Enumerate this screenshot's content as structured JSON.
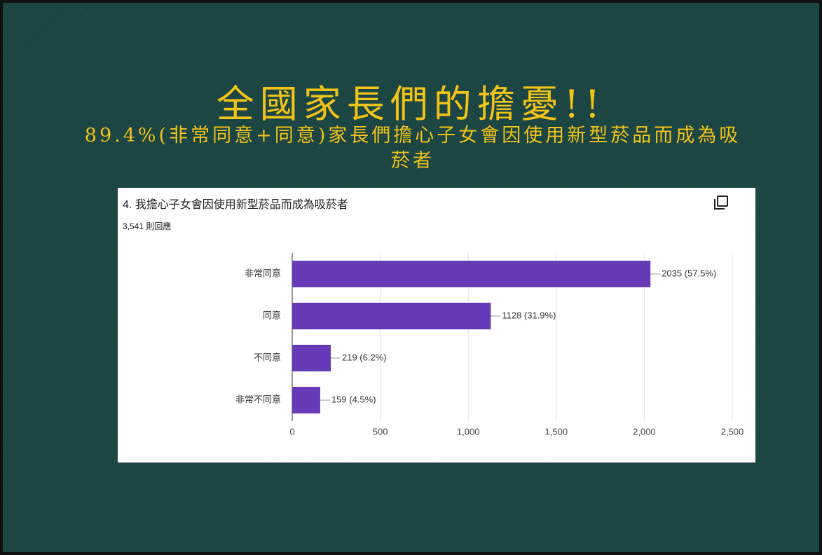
{
  "slide": {
    "title": "全國家長們的擔憂!!",
    "subtitle": "89.4%(非常同意+同意)家長們擔心子女會因使用新型菸品而成為吸菸者"
  },
  "chart_data": {
    "type": "bar",
    "orientation": "horizontal",
    "title": "4. 我擔心子女會因使用新型菸品而成為吸菸者",
    "subtitle": "3,541 則回應",
    "categories": [
      "非常同意",
      "同意",
      "不同意",
      "非常不同意"
    ],
    "values": [
      2035,
      1128,
      219,
      159
    ],
    "value_labels": [
      "2035 (57.5%)",
      "1128 (31.9%)",
      "219 (6.2%)",
      "159 (4.5%)"
    ],
    "color": "#673ab7",
    "xlim": [
      0,
      2500
    ],
    "xticks": [
      0,
      500,
      {
        "value": 1000,
        "label": "1,000"
      },
      {
        "value": 1500,
        "label": "1,500"
      },
      {
        "value": 2000,
        "label": "2,000"
      },
      {
        "value": 2500,
        "label": "2,500"
      }
    ],
    "grid": true
  }
}
